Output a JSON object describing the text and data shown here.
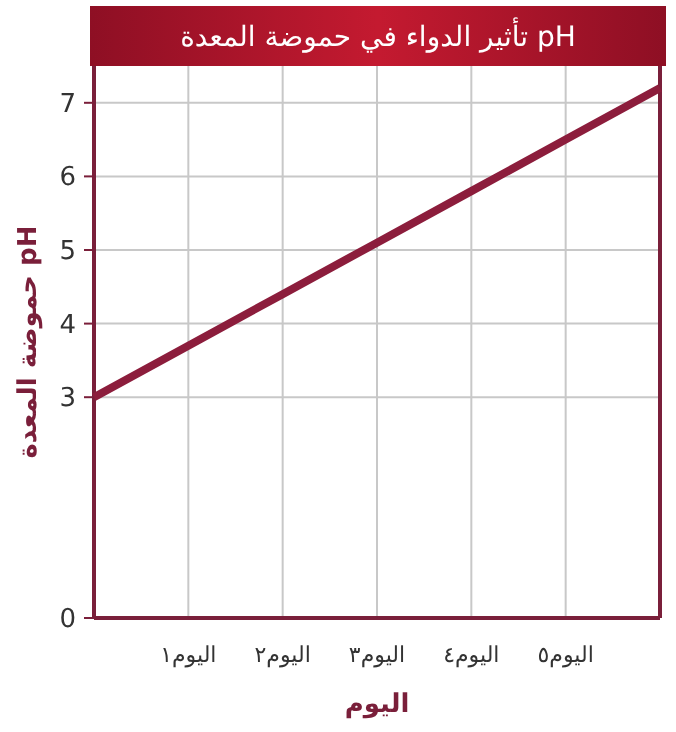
{
  "chart_data": {
    "type": "line",
    "title": "تأثير الدواء في حموضة المعدة pH",
    "xlabel": "اليوم",
    "ylabel": "حموضة المعدة pH",
    "categories": [
      null,
      "اليوم١",
      "اليوم٢",
      "اليوم٣",
      "اليوم٤",
      "اليوم٥",
      null
    ],
    "series": [
      {
        "color": "#8c1d3c",
        "values": [
          3,
          3.7,
          4.4,
          5.1,
          5.8,
          6.5,
          7.2
        ]
      }
    ],
    "ylim": [
      0,
      7.5
    ],
    "yticks": [
      0,
      3,
      4,
      5,
      6,
      7
    ],
    "grid": true,
    "marker": "none",
    "line_style": "solid"
  }
}
